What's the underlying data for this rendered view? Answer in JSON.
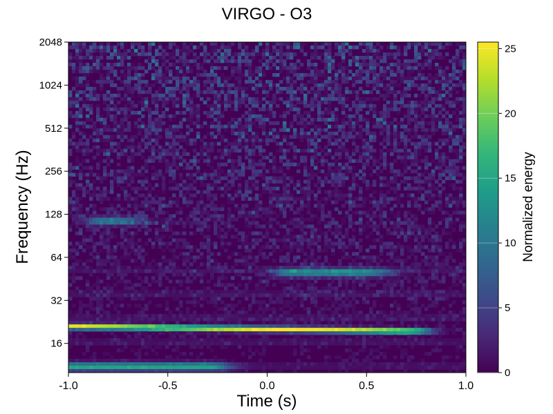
{
  "chart_data": {
    "type": "heatmap",
    "title": "VIRGO - O3",
    "xlabel": "Time (s)",
    "ylabel": "Frequency (Hz)",
    "xlim": [
      -1.0,
      1.0
    ],
    "ylim": [
      10,
      2048
    ],
    "yscale": "log2",
    "x_ticks": [
      "-1.0",
      "-0.5",
      "0.0",
      "0.5",
      "1.0"
    ],
    "y_ticks": [
      "16",
      "32",
      "64",
      "128",
      "256",
      "512",
      "1024",
      "2048"
    ],
    "colormap": "viridis",
    "colorbar": {
      "label": "Normalized energy",
      "range": [
        0,
        25.5
      ],
      "ticks": [
        "0",
        "5",
        "10",
        "15",
        "20",
        "25"
      ]
    },
    "features": [
      {
        "t_start": -1.0,
        "t_end": 0.7,
        "f_start": 21,
        "f_end": 19.5,
        "energy": 25
      },
      {
        "t_start": -1.0,
        "t_end": -0.3,
        "f_start": 11,
        "f_end": 11,
        "energy": 14
      },
      {
        "t_start": 0.1,
        "t_end": 0.5,
        "f_start": 50,
        "f_end": 50,
        "energy": 12
      },
      {
        "t_start": -0.85,
        "t_end": -0.75,
        "f_start": 115,
        "f_end": 115,
        "energy": 10
      }
    ]
  }
}
